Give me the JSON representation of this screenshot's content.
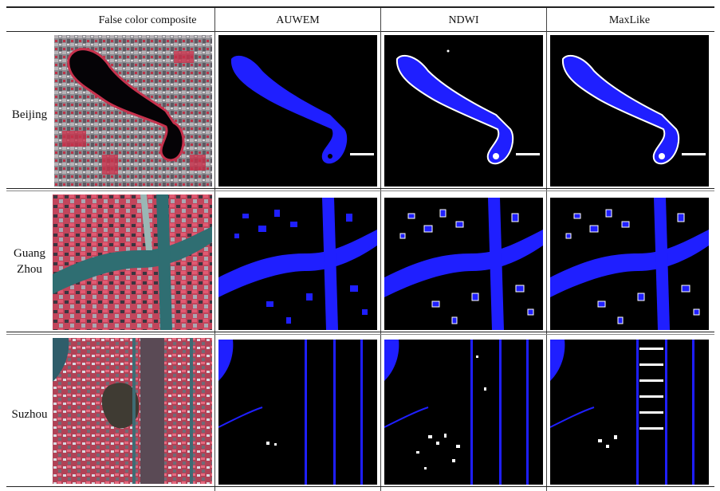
{
  "columns": [
    "False color composite",
    "AUWEM",
    "NDWI",
    "MaxLike"
  ],
  "rows": [
    {
      "name": "Beijing",
      "label_lines": [
        "Beijing"
      ]
    },
    {
      "name": "GuangZhou",
      "label_lines": [
        "Guang",
        "Zhou"
      ]
    },
    {
      "name": "Suzhou",
      "label_lines": [
        "Suzhou"
      ]
    }
  ],
  "colors": {
    "water": "#1f1fff",
    "mask_bg": "#000000",
    "nonwater_fp": "#ffffff"
  }
}
